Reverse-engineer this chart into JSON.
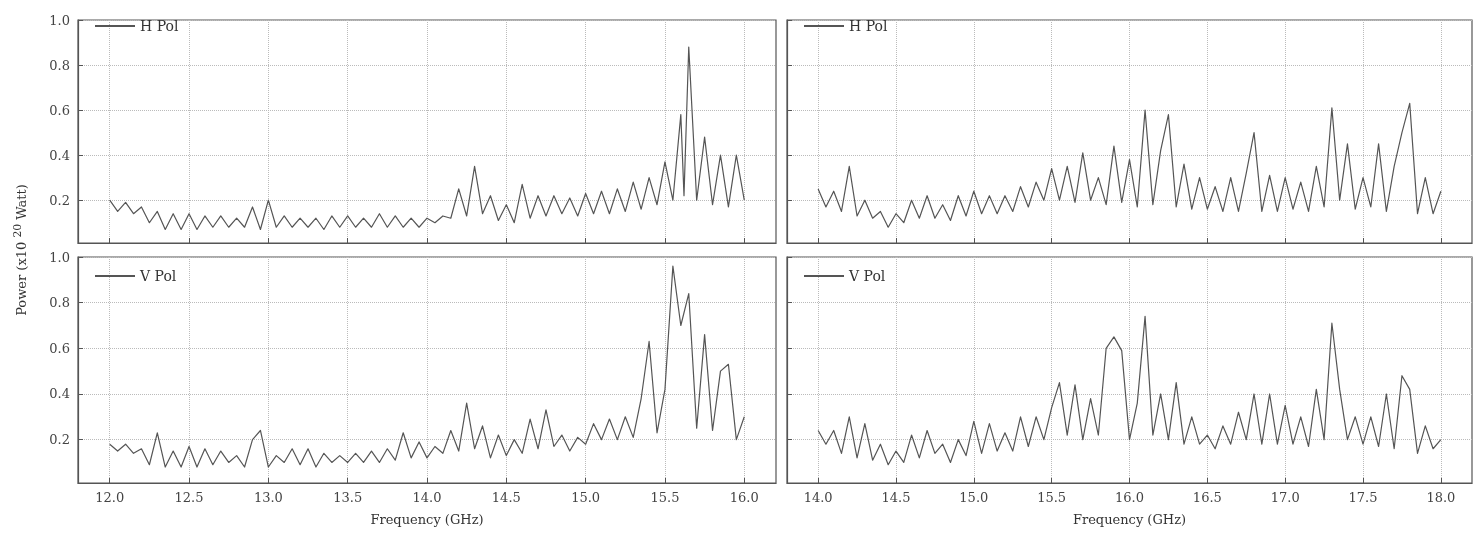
{
  "chart_data": [
    {
      "type": "line",
      "ylabel": "Power (x10 $^{20}$ Watt)",
      "tick_labels": "y",
      "grid": true,
      "legend": "top left",
      "xlim": [
        11.8,
        16.2
      ],
      "ylim": [
        0.01,
        1.0
      ],
      "xticks": [
        {
          "value": 12,
          "label": null
        },
        {
          "value": 12.5,
          "label": null
        },
        {
          "value": 13,
          "label": null
        },
        {
          "value": 13.5,
          "label": null
        },
        {
          "value": 14,
          "label": null
        },
        {
          "value": 14.5,
          "label": null
        },
        {
          "value": 15,
          "label": null
        },
        {
          "value": 15.5,
          "label": null
        },
        {
          "value": 16,
          "label": null
        }
      ],
      "yticks": [
        0.2,
        0.4,
        0.6,
        0.8,
        {
          "value": 1,
          "label": "1.0"
        }
      ],
      "series": [
        {
          "name": "H Pol",
          "color": "#555555",
          "x": [
            12.0,
            12.05,
            12.1,
            12.15,
            12.2,
            12.25,
            12.3,
            12.35,
            12.4,
            12.45,
            12.5,
            12.55,
            12.6,
            12.65,
            12.7,
            12.75,
            12.8,
            12.85,
            12.9,
            12.95,
            13.0,
            13.05,
            13.1,
            13.15,
            13.2,
            13.25,
            13.3,
            13.35,
            13.4,
            13.45,
            13.5,
            13.55,
            13.6,
            13.65,
            13.7,
            13.75,
            13.8,
            13.85,
            13.9,
            13.95,
            14.0,
            14.05,
            14.1,
            14.15,
            14.2,
            14.25,
            14.3,
            14.35,
            14.4,
            14.45,
            14.5,
            14.55,
            14.6,
            14.65,
            14.7,
            14.75,
            14.8,
            14.85,
            14.9,
            14.95,
            15.0,
            15.05,
            15.1,
            15.15,
            15.2,
            15.25,
            15.3,
            15.35,
            15.4,
            15.45,
            15.5,
            15.55,
            15.6,
            15.62,
            15.65,
            15.7,
            15.75,
            15.8,
            15.85,
            15.9,
            15.95,
            16.0
          ],
          "values": [
            0.2,
            0.15,
            0.19,
            0.14,
            0.17,
            0.1,
            0.15,
            0.07,
            0.14,
            0.07,
            0.14,
            0.07,
            0.13,
            0.08,
            0.13,
            0.08,
            0.12,
            0.08,
            0.17,
            0.07,
            0.2,
            0.08,
            0.13,
            0.08,
            0.12,
            0.08,
            0.12,
            0.07,
            0.13,
            0.08,
            0.13,
            0.08,
            0.12,
            0.08,
            0.14,
            0.08,
            0.13,
            0.08,
            0.12,
            0.08,
            0.12,
            0.1,
            0.13,
            0.12,
            0.25,
            0.13,
            0.35,
            0.14,
            0.22,
            0.11,
            0.18,
            0.1,
            0.27,
            0.12,
            0.22,
            0.13,
            0.22,
            0.14,
            0.21,
            0.13,
            0.23,
            0.14,
            0.24,
            0.14,
            0.25,
            0.15,
            0.28,
            0.16,
            0.3,
            0.18,
            0.37,
            0.2,
            0.58,
            0.22,
            0.88,
            0.2,
            0.48,
            0.18,
            0.4,
            0.17,
            0.4,
            0.2
          ]
        }
      ]
    },
    {
      "type": "line",
      "tick_labels": false,
      "grid": true,
      "legend": "top left",
      "xlim": [
        13.8,
        18.2
      ],
      "ylim": [
        0.01,
        1.0
      ],
      "xticks": [
        {
          "value": 14,
          "label": null
        },
        {
          "value": 14.5,
          "label": null
        },
        {
          "value": 15,
          "label": null
        },
        {
          "value": 15.5,
          "label": null
        },
        {
          "value": 16,
          "label": null
        },
        {
          "value": 16.5,
          "label": null
        },
        {
          "value": 17,
          "label": null
        },
        {
          "value": 17.5,
          "label": null
        },
        {
          "value": 18,
          "label": null
        }
      ],
      "yticks": [
        {
          "value": 0.2,
          "label": null
        },
        {
          "value": 0.4,
          "label": null
        },
        {
          "value": 0.6,
          "label": null
        },
        {
          "value": 0.8,
          "label": null
        },
        {
          "value": 1,
          "label": null
        }
      ],
      "series": [
        {
          "name": "H Pol",
          "color": "#555555",
          "x": [
            14.0,
            14.05,
            14.1,
            14.15,
            14.2,
            14.25,
            14.3,
            14.35,
            14.4,
            14.45,
            14.5,
            14.55,
            14.6,
            14.65,
            14.7,
            14.75,
            14.8,
            14.85,
            14.9,
            14.95,
            15.0,
            15.05,
            15.1,
            15.15,
            15.2,
            15.25,
            15.3,
            15.35,
            15.4,
            15.45,
            15.5,
            15.55,
            15.6,
            15.65,
            15.7,
            15.75,
            15.8,
            15.85,
            15.9,
            15.95,
            16.0,
            16.05,
            16.1,
            16.15,
            16.2,
            16.25,
            16.3,
            16.35,
            16.4,
            16.45,
            16.5,
            16.55,
            16.6,
            16.65,
            16.7,
            16.75,
            16.8,
            16.85,
            16.9,
            16.95,
            17.0,
            17.05,
            17.1,
            17.15,
            17.2,
            17.25,
            17.3,
            17.35,
            17.4,
            17.45,
            17.5,
            17.55,
            17.6,
            17.65,
            17.7,
            17.75,
            17.8,
            17.85,
            17.9,
            17.95,
            18.0
          ],
          "values": [
            0.25,
            0.17,
            0.24,
            0.15,
            0.35,
            0.13,
            0.2,
            0.12,
            0.15,
            0.08,
            0.14,
            0.1,
            0.2,
            0.12,
            0.22,
            0.12,
            0.18,
            0.11,
            0.22,
            0.13,
            0.24,
            0.14,
            0.22,
            0.14,
            0.22,
            0.15,
            0.26,
            0.17,
            0.28,
            0.2,
            0.34,
            0.2,
            0.35,
            0.19,
            0.41,
            0.2,
            0.3,
            0.18,
            0.44,
            0.19,
            0.38,
            0.17,
            0.6,
            0.18,
            0.42,
            0.58,
            0.17,
            0.36,
            0.16,
            0.3,
            0.16,
            0.26,
            0.15,
            0.3,
            0.15,
            0.32,
            0.5,
            0.15,
            0.31,
            0.15,
            0.3,
            0.16,
            0.28,
            0.15,
            0.35,
            0.17,
            0.61,
            0.2,
            0.45,
            0.16,
            0.3,
            0.17,
            0.45,
            0.15,
            0.35,
            0.5,
            0.63,
            0.14,
            0.3,
            0.14,
            0.24
          ]
        }
      ]
    },
    {
      "type": "line",
      "xlabel": "Frequency (GHz)",
      "grid": true,
      "legend": "top left",
      "xlim": [
        11.8,
        16.2
      ],
      "ylim": [
        0.01,
        1.0
      ],
      "xticks": [
        {
          "value": 12,
          "label": "12.0"
        },
        12.5,
        {
          "value": 13,
          "label": "13.0"
        },
        13.5,
        {
          "value": 14,
          "label": "14.0"
        },
        14.5,
        {
          "value": 15,
          "label": "15.0"
        },
        15.5,
        {
          "value": 16,
          "label": "16.0"
        }
      ],
      "yticks": [
        0.2,
        0.4,
        0.6,
        0.8,
        {
          "value": 1,
          "label": "1.0"
        }
      ],
      "series": [
        {
          "name": "V Pol",
          "color": "#555555",
          "x": [
            12.0,
            12.05,
            12.1,
            12.15,
            12.2,
            12.25,
            12.3,
            12.35,
            12.4,
            12.45,
            12.5,
            12.55,
            12.6,
            12.65,
            12.7,
            12.75,
            12.8,
            12.85,
            12.9,
            12.95,
            13.0,
            13.05,
            13.1,
            13.15,
            13.2,
            13.25,
            13.3,
            13.35,
            13.4,
            13.45,
            13.5,
            13.55,
            13.6,
            13.65,
            13.7,
            13.75,
            13.8,
            13.85,
            13.9,
            13.95,
            14.0,
            14.05,
            14.1,
            14.15,
            14.2,
            14.25,
            14.3,
            14.35,
            14.4,
            14.45,
            14.5,
            14.55,
            14.6,
            14.65,
            14.7,
            14.75,
            14.8,
            14.85,
            14.9,
            14.95,
            15.0,
            15.05,
            15.1,
            15.15,
            15.2,
            15.25,
            15.3,
            15.35,
            15.4,
            15.45,
            15.5,
            15.55,
            15.6,
            15.65,
            15.7,
            15.75,
            15.8,
            15.85,
            15.9,
            15.95,
            16.0
          ],
          "values": [
            0.18,
            0.15,
            0.18,
            0.14,
            0.16,
            0.09,
            0.23,
            0.08,
            0.15,
            0.08,
            0.17,
            0.08,
            0.16,
            0.09,
            0.15,
            0.1,
            0.13,
            0.08,
            0.2,
            0.24,
            0.08,
            0.13,
            0.1,
            0.16,
            0.09,
            0.16,
            0.08,
            0.14,
            0.1,
            0.13,
            0.1,
            0.14,
            0.1,
            0.15,
            0.1,
            0.16,
            0.11,
            0.23,
            0.12,
            0.19,
            0.12,
            0.17,
            0.14,
            0.24,
            0.15,
            0.36,
            0.16,
            0.26,
            0.12,
            0.22,
            0.13,
            0.2,
            0.14,
            0.29,
            0.16,
            0.33,
            0.17,
            0.22,
            0.15,
            0.21,
            0.18,
            0.27,
            0.2,
            0.29,
            0.2,
            0.3,
            0.21,
            0.38,
            0.63,
            0.23,
            0.42,
            0.96,
            0.7,
            0.84,
            0.25,
            0.66,
            0.24,
            0.5,
            0.53,
            0.2,
            0.3
          ]
        }
      ]
    },
    {
      "type": "line",
      "xlabel": "Frequency (GHz)",
      "tick_labels": "x",
      "grid": true,
      "legend": "top left",
      "xlim": [
        13.8,
        18.2
      ],
      "ylim": [
        0.01,
        1.0
      ],
      "xticks": [
        {
          "value": 14,
          "label": "14.0"
        },
        14.5,
        {
          "value": 15,
          "label": "15.0"
        },
        15.5,
        {
          "value": 16,
          "label": "16.0"
        },
        16.5,
        {
          "value": 17,
          "label": "17.0"
        },
        17.5,
        {
          "value": 18,
          "label": "18.0"
        }
      ],
      "yticks": [
        {
          "value": 0.2,
          "label": null
        },
        {
          "value": 0.4,
          "label": null
        },
        {
          "value": 0.6,
          "label": null
        },
        {
          "value": 0.8,
          "label": null
        },
        {
          "value": 1,
          "label": null
        }
      ],
      "series": [
        {
          "name": "V Pol",
          "color": "#555555",
          "x": [
            14.0,
            14.05,
            14.1,
            14.15,
            14.2,
            14.25,
            14.3,
            14.35,
            14.4,
            14.45,
            14.5,
            14.55,
            14.6,
            14.65,
            14.7,
            14.75,
            14.8,
            14.85,
            14.9,
            14.95,
            15.0,
            15.05,
            15.1,
            15.15,
            15.2,
            15.25,
            15.3,
            15.35,
            15.4,
            15.45,
            15.5,
            15.55,
            15.6,
            15.65,
            15.7,
            15.75,
            15.8,
            15.85,
            15.9,
            15.95,
            16.0,
            16.05,
            16.1,
            16.15,
            16.2,
            16.25,
            16.3,
            16.35,
            16.4,
            16.45,
            16.5,
            16.55,
            16.6,
            16.65,
            16.7,
            16.75,
            16.8,
            16.85,
            16.9,
            16.95,
            17.0,
            17.05,
            17.1,
            17.15,
            17.2,
            17.25,
            17.3,
            17.35,
            17.4,
            17.45,
            17.5,
            17.55,
            17.6,
            17.65,
            17.7,
            17.75,
            17.8,
            17.85,
            17.9,
            17.95,
            18.0
          ],
          "values": [
            0.24,
            0.18,
            0.24,
            0.14,
            0.3,
            0.12,
            0.27,
            0.11,
            0.18,
            0.09,
            0.15,
            0.1,
            0.22,
            0.12,
            0.24,
            0.14,
            0.18,
            0.1,
            0.2,
            0.13,
            0.28,
            0.14,
            0.27,
            0.15,
            0.23,
            0.15,
            0.3,
            0.17,
            0.3,
            0.2,
            0.34,
            0.45,
            0.22,
            0.44,
            0.2,
            0.38,
            0.22,
            0.6,
            0.65,
            0.59,
            0.2,
            0.36,
            0.74,
            0.22,
            0.4,
            0.2,
            0.45,
            0.18,
            0.3,
            0.18,
            0.22,
            0.16,
            0.26,
            0.18,
            0.32,
            0.2,
            0.4,
            0.18,
            0.4,
            0.18,
            0.35,
            0.18,
            0.3,
            0.17,
            0.42,
            0.2,
            0.71,
            0.42,
            0.2,
            0.3,
            0.18,
            0.3,
            0.17,
            0.4,
            0.16,
            0.48,
            0.42,
            0.14,
            0.26,
            0.16,
            0.2
          ]
        }
      ]
    }
  ]
}
